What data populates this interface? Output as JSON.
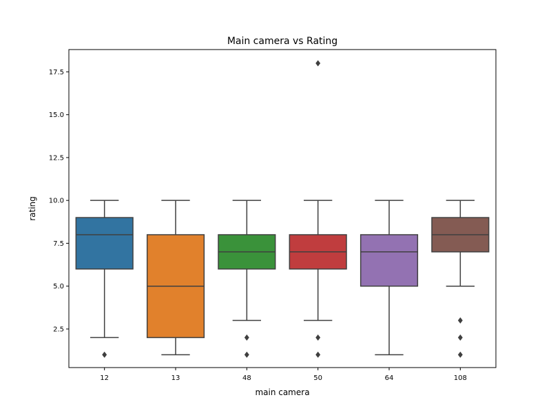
{
  "chart_data": {
    "type": "box",
    "title": "Main camera vs Rating",
    "xlabel": "main camera",
    "ylabel": "rating",
    "ylim": [
      0.25,
      18.8
    ],
    "yticks": [
      2.5,
      5.0,
      7.5,
      10.0,
      12.5,
      15.0,
      17.5
    ],
    "ytick_labels": [
      "2.5",
      "5.0",
      "7.5",
      "10.0",
      "12.5",
      "15.0",
      "17.5"
    ],
    "grid": false,
    "categories": [
      "12",
      "13",
      "48",
      "50",
      "64",
      "108"
    ],
    "boxes": [
      {
        "category": "12",
        "color": "#3274a1",
        "whislo": 2,
        "q1": 6,
        "median": 8,
        "q3": 9,
        "whishi": 10,
        "fliers": [
          1
        ]
      },
      {
        "category": "13",
        "color": "#e1812c",
        "whislo": 1,
        "q1": 2,
        "median": 5,
        "q3": 8,
        "whishi": 10,
        "fliers": []
      },
      {
        "category": "48",
        "color": "#3a923a",
        "whislo": 3,
        "q1": 6,
        "median": 7,
        "q3": 8,
        "whishi": 10,
        "fliers": [
          2,
          1
        ]
      },
      {
        "category": "50",
        "color": "#c03d3e",
        "whislo": 3,
        "q1": 6,
        "median": 7,
        "q3": 8,
        "whishi": 10,
        "fliers": [
          2,
          1,
          18
        ]
      },
      {
        "category": "64",
        "color": "#9372b2",
        "whislo": 1,
        "q1": 5,
        "median": 7,
        "q3": 8,
        "whishi": 10,
        "fliers": []
      },
      {
        "category": "108",
        "color": "#845b53",
        "whislo": 5,
        "q1": 7,
        "median": 8,
        "q3": 9,
        "whishi": 10,
        "fliers": [
          3,
          2,
          1
        ]
      }
    ]
  }
}
